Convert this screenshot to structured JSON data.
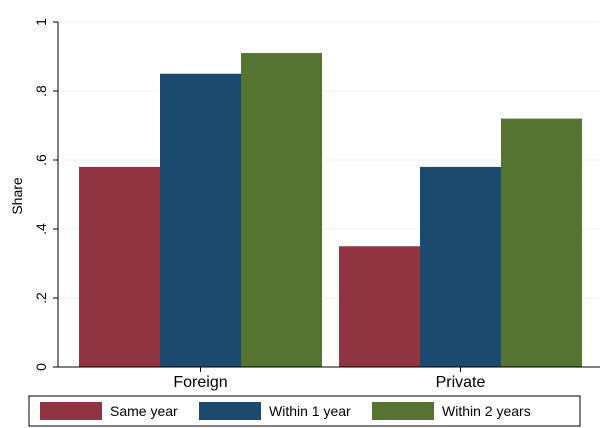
{
  "chart_data": {
    "type": "bar",
    "categories": [
      "Foreign",
      "Private"
    ],
    "series": [
      {
        "name": "Same year",
        "values": [
          0.58,
          0.35
        ],
        "color": "#8f3440"
      },
      {
        "name": "Within 1 year",
        "values": [
          0.85,
          0.58
        ],
        "color": "#1b4a6e"
      },
      {
        "name": "Within 2 years",
        "values": [
          0.91,
          0.72
        ],
        "color": "#557432"
      }
    ],
    "title": "",
    "xlabel": "",
    "ylabel": "Share",
    "ylim": [
      0,
      1
    ],
    "yticks": [
      {
        "value": 0,
        "label": "0"
      },
      {
        "value": 0.2,
        "label": ".2"
      },
      {
        "value": 0.4,
        "label": ".4"
      },
      {
        "value": 0.6,
        "label": ".6"
      },
      {
        "value": 0.8,
        "label": ".8"
      },
      {
        "value": 1,
        "label": "1"
      }
    ],
    "grid": true,
    "legend_position": "bottom"
  }
}
